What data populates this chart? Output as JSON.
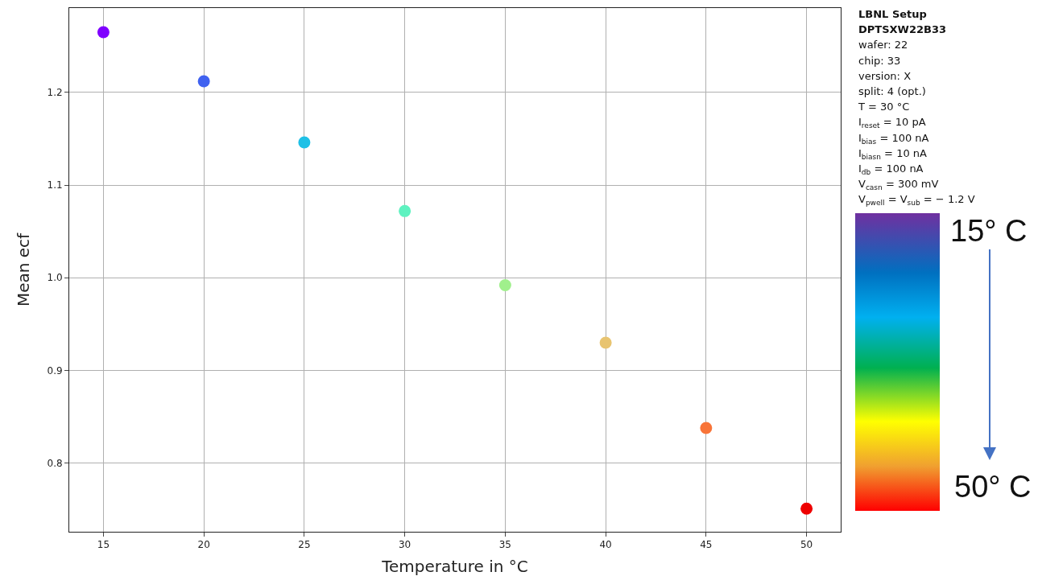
{
  "chart_data": {
    "type": "scatter",
    "xlabel": "Temperature in °C",
    "ylabel": "Mean ecf",
    "x": [
      15,
      20,
      25,
      30,
      35,
      40,
      45,
      50
    ],
    "values": [
      1.265,
      1.212,
      1.146,
      1.072,
      0.992,
      0.93,
      0.838,
      0.751
    ],
    "colors": [
      "#7f00ff",
      "#4062f0",
      "#1ec0e6",
      "#5ef2c0",
      "#a0f08c",
      "#e8c470",
      "#f87438",
      "#ee0000"
    ],
    "xlim": [
      13.3,
      51.7
    ],
    "xticks": [
      15,
      20,
      25,
      30,
      35,
      40,
      45,
      50
    ],
    "ylim": [
      0.726,
      1.291
    ],
    "yticks": [
      0.8,
      0.9,
      {
        "value": 1,
        "label": "1.0"
      },
      1.1,
      1.2
    ],
    "grid": true,
    "marker": "circle",
    "annotations": [
      "LBNL Setup",
      "DPTSXW22B33",
      "wafer: 22",
      "chip: 33",
      "version: X",
      "split:  4 (opt.)",
      "T = 30 °C",
      "I$_{reset}$ = 10 pA",
      "I$_{bias}$ = 100 nA",
      "I$_{biasn}$ = 10 nA",
      "I$_{db}$ = 100 nA",
      "V$_{casn}$ = 300 mV",
      "V$_{pwell}$ = V$_{sub}$ = − 1.2 V",
      "15° C",
      "50° C"
    ]
  }
}
